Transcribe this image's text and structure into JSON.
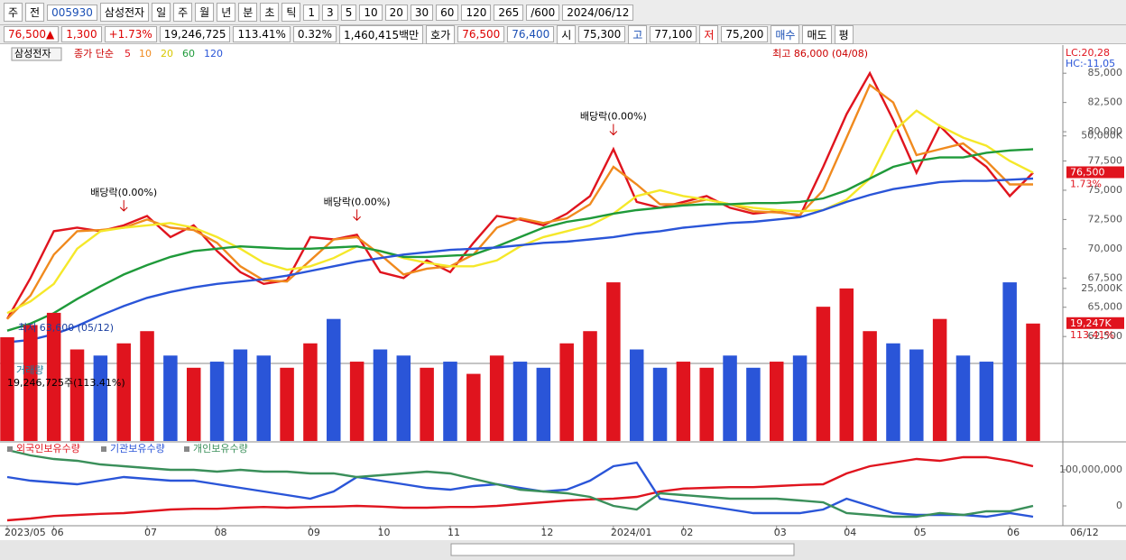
{
  "toolbar": {
    "items": [
      "주",
      "전",
      "005930",
      "삼성전자",
      "일",
      "주",
      "월",
      "년",
      "분",
      "초",
      "틱",
      "1",
      "3",
      "5",
      "10",
      "20",
      "30",
      "60",
      "120",
      "265",
      "/600",
      "2024/06/12"
    ]
  },
  "info": {
    "items": [
      "76,500▲",
      "1,300",
      "+1.73%",
      "19,246,725",
      "113.41%",
      "0.32%",
      "1,460,415백만",
      "호가",
      "76,500",
      "76,400",
      "시",
      "75,300",
      "고",
      "77,100",
      "저",
      "75,200",
      "매수",
      "매도",
      "평"
    ]
  },
  "chart_data": [
    {
      "type": "line",
      "title": "삼성전자",
      "legend_title": "종가 단순",
      "lc": "LC:20,28",
      "hc": "HC:-11,05",
      "categories": [
        "2023/05",
        null,
        "06",
        null,
        null,
        null,
        "07",
        null,
        null,
        "08",
        null,
        null,
        null,
        "09",
        null,
        null,
        "10",
        null,
        null,
        "11",
        null,
        null,
        null,
        "12",
        null,
        null,
        "2024/01",
        null,
        null,
        "02",
        null,
        null,
        null,
        "03",
        null,
        null,
        "04",
        null,
        null,
        "05",
        null,
        null,
        null,
        "06",
        null
      ],
      "end_label": "06/12",
      "ylim": [
        60200,
        87250
      ],
      "yticks": [
        {
          "value": 62500,
          "label": "62,500"
        },
        {
          "value": 65000,
          "label": "65,000"
        },
        {
          "value": 67500,
          "label": "67,500"
        },
        {
          "value": 70000,
          "label": "70,000"
        },
        {
          "value": 72500,
          "label": "72,500"
        },
        {
          "value": 75000,
          "label": "75,000"
        },
        {
          "value": 77500,
          "label": "77,500"
        },
        {
          "value": 80000,
          "label": "80,000"
        },
        {
          "value": 82500,
          "label": "82,500"
        },
        {
          "value": 85000,
          "label": "85,000"
        }
      ],
      "series": [
        {
          "name": "5",
          "color": "#e0141e",
          "values": [
            64000,
            67500,
            71500,
            71800,
            71500,
            72000,
            72800,
            71000,
            72000,
            69800,
            68000,
            67000,
            67300,
            71000,
            70800,
            71200,
            68000,
            67500,
            69000,
            68000,
            70500,
            72800,
            72500,
            72000,
            73000,
            74500,
            78500,
            74000,
            73500,
            74000,
            74500,
            73500,
            73000,
            73200,
            72800,
            77000,
            81500,
            85000,
            81000,
            76500,
            80500,
            78500,
            77000,
            74500,
            76500
          ]
        },
        {
          "name": "10",
          "color": "#f08a1e",
          "values": [
            64000,
            66000,
            69500,
            71500,
            71600,
            71800,
            72500,
            71800,
            71600,
            70500,
            68500,
            67300,
            67200,
            69000,
            70800,
            71000,
            69500,
            67800,
            68300,
            68500,
            69500,
            71800,
            72600,
            72200,
            72600,
            73800,
            77000,
            75500,
            73800,
            73800,
            74200,
            73800,
            73200,
            73100,
            72900,
            75000,
            79500,
            84000,
            82500,
            78000,
            78500,
            79000,
            77500,
            75500,
            75500
          ]
        },
        {
          "name": "20",
          "color": "#f5e82a",
          "values": [
            64500,
            65500,
            67000,
            70000,
            71500,
            71800,
            72000,
            72200,
            71800,
            71000,
            70000,
            68800,
            68200,
            68500,
            69200,
            70200,
            69800,
            69200,
            68800,
            68500,
            68500,
            69000,
            70200,
            71000,
            71500,
            72000,
            73000,
            74500,
            75000,
            74500,
            74200,
            73800,
            73500,
            73300,
            73200,
            73300,
            74200,
            76000,
            80000,
            81800,
            80500,
            79500,
            78800,
            77500,
            76500
          ]
        },
        {
          "name": "60",
          "color": "#1f9a3a",
          "values": [
            63000,
            63600,
            64500,
            65700,
            66800,
            67800,
            68600,
            69300,
            69800,
            70000,
            70200,
            70100,
            70000,
            70000,
            70100,
            70200,
            69800,
            69300,
            69300,
            69400,
            69500,
            70200,
            71000,
            71800,
            72300,
            72600,
            73000,
            73300,
            73500,
            73700,
            73800,
            73800,
            73900,
            73900,
            74000,
            74300,
            75000,
            76000,
            77000,
            77500,
            77800,
            77800,
            78200,
            78400,
            78500
          ]
        },
        {
          "name": "120",
          "color": "#2a55d8",
          "values": [
            62000,
            62200,
            62700,
            63400,
            64300,
            65100,
            65800,
            66300,
            66700,
            67000,
            67200,
            67400,
            67700,
            68100,
            68500,
            68900,
            69200,
            69500,
            69700,
            69900,
            70000,
            70100,
            70300,
            70500,
            70600,
            70800,
            71000,
            71300,
            71500,
            71800,
            72000,
            72200,
            72300,
            72500,
            72700,
            73300,
            74000,
            74600,
            75100,
            75400,
            75700,
            75800,
            75800,
            75900,
            76000
          ]
        }
      ],
      "marker": {
        "value": 76500,
        "label": "76,500",
        "sub": "1.73%"
      },
      "annotations": [
        {
          "text": "최고 86,000 (04/08)",
          "at": 37,
          "value": 86000
        },
        {
          "text": "최저 63,600 (05/12)",
          "at": 0,
          "value": 63600
        },
        {
          "text": "배당락(0.00%)",
          "at": 5
        },
        {
          "text": "배당락(0.00%)",
          "at": 15
        },
        {
          "text": "배당락(0.00%)",
          "at": 26
        }
      ]
    },
    {
      "type": "bar",
      "title": "거래량",
      "subtitle": "19,246,725주(113.41%)",
      "ylim": [
        0,
        65625
      ],
      "yticks": [
        {
          "value": 25000,
          "label": "25,000K"
        },
        {
          "value": 50000,
          "label": "50,000K"
        }
      ],
      "series": [
        {
          "name": "거래량",
          "color": "#e0141e",
          "down_color": "#2a55d8",
          "values": [
            17000,
            19000,
            21000,
            15000,
            14000,
            16000,
            18000,
            14000,
            12000,
            13000,
            15000,
            14000,
            12000,
            16000,
            20000,
            13000,
            15000,
            14000,
            12000,
            13000,
            11000,
            14000,
            13000,
            12000,
            16000,
            18000,
            26000,
            15000,
            12000,
            13000,
            12000,
            14000,
            12000,
            13000,
            14000,
            22000,
            25000,
            18000,
            16000,
            15000,
            20000,
            14000,
            13000,
            26000,
            19247
          ]
        }
      ],
      "marker": {
        "value": 19247,
        "label": "19,247K",
        "sub": "113.41%"
      }
    },
    {
      "type": "line",
      "ylim": [
        -55000000,
        172500000
      ],
      "yticks": [
        0,
        {
          "value": 100000000,
          "label": "100,000,000"
        }
      ],
      "series": [
        {
          "name": "외국인보유수량",
          "color": "#e0141e",
          "values": [
            -40000000,
            -35000000,
            -28000000,
            -25000000,
            -22000000,
            -20000000,
            -15000000,
            -10000000,
            -8000000,
            -8000000,
            -5000000,
            -3000000,
            -5000000,
            -3000000,
            -2000000,
            0,
            -2000000,
            -5000000,
            -5000000,
            -3000000,
            -3000000,
            0,
            5000000,
            10000000,
            15000000,
            18000000,
            20000000,
            25000000,
            40000000,
            48000000,
            50000000,
            52000000,
            52000000,
            55000000,
            58000000,
            60000000,
            90000000,
            110000000,
            120000000,
            130000000,
            125000000,
            135000000,
            135000000,
            125000000,
            110000000
          ]
        },
        {
          "name": "기관보유수량",
          "color": "#2a55d8",
          "values": [
            80000000,
            70000000,
            65000000,
            60000000,
            70000000,
            80000000,
            75000000,
            70000000,
            70000000,
            60000000,
            50000000,
            40000000,
            30000000,
            20000000,
            40000000,
            80000000,
            70000000,
            60000000,
            50000000,
            45000000,
            55000000,
            60000000,
            50000000,
            40000000,
            45000000,
            70000000,
            110000000,
            120000000,
            20000000,
            10000000,
            0,
            -10000000,
            -20000000,
            -20000000,
            -20000000,
            -10000000,
            20000000,
            0,
            -20000000,
            -25000000,
            -25000000,
            -25000000,
            -30000000,
            -20000000,
            -30000000
          ]
        },
        {
          "name": "개인보유수량",
          "color": "#3a8f5a",
          "values": [
            155000000,
            140000000,
            130000000,
            125000000,
            115000000,
            110000000,
            105000000,
            100000000,
            100000000,
            95000000,
            100000000,
            95000000,
            95000000,
            90000000,
            90000000,
            80000000,
            85000000,
            90000000,
            95000000,
            90000000,
            75000000,
            60000000,
            45000000,
            40000000,
            35000000,
            25000000,
            0,
            -10000000,
            35000000,
            30000000,
            25000000,
            20000000,
            20000000,
            20000000,
            15000000,
            10000000,
            -20000000,
            -25000000,
            -30000000,
            -30000000,
            -20000000,
            -25000000,
            -15000000,
            -15000000,
            0
          ]
        }
      ]
    }
  ]
}
